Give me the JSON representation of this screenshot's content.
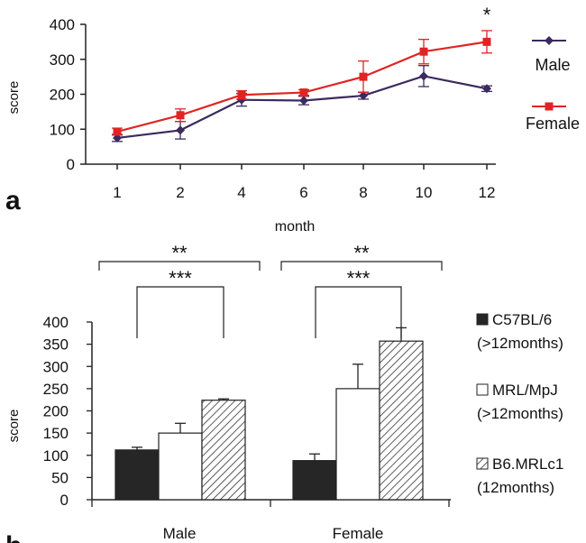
{
  "chart_data": [
    {
      "panel": "a",
      "type": "line",
      "xlabel": "month",
      "ylabel": "score",
      "categories": [
        "1",
        "2",
        "4",
        "6",
        "8",
        "10",
        "12"
      ],
      "ylim": [
        0,
        400
      ],
      "yticks": [
        "0",
        "100",
        "200",
        "300",
        "400"
      ],
      "grid": false,
      "legend_position": "right",
      "series": [
        {
          "name": "Male",
          "color": "#3a2a5e",
          "marker": "diamond",
          "values": [
            75,
            97,
            184,
            182,
            196,
            252,
            216
          ],
          "errors": [
            10,
            25,
            18,
            12,
            10,
            30,
            8
          ]
        },
        {
          "name": "Female",
          "color": "#e02424",
          "marker": "square",
          "values": [
            93,
            140,
            198,
            205,
            250,
            322,
            350
          ],
          "errors": [
            10,
            18,
            12,
            8,
            45,
            35,
            32
          ]
        }
      ],
      "annotations": [
        {
          "category": "12",
          "text": "*"
        }
      ]
    },
    {
      "panel": "b",
      "type": "bar",
      "ylabel": "score",
      "categories": [
        "Male",
        "Female"
      ],
      "ylim": [
        0,
        400
      ],
      "yticks": [
        "0",
        "50",
        "100",
        "150",
        "200",
        "250",
        "300",
        "350",
        "400"
      ],
      "grid": false,
      "legend_position": "right",
      "series": [
        {
          "name": "C57BL/6",
          "name_line2": "(>12months)",
          "fill": "solid",
          "color": "#262626",
          "values": [
            112,
            88
          ],
          "errors": [
            6,
            15
          ]
        },
        {
          "name": "MRL/MpJ",
          "name_line2": "(>12months)",
          "fill": "open",
          "color": "#ffffff",
          "values": [
            150,
            250
          ],
          "errors": [
            22,
            55
          ]
        },
        {
          "name": "B6.MRLc1",
          "name_line2": "(12months)",
          "fill": "hatched",
          "color": "#888888",
          "values": [
            224,
            357
          ],
          "errors": [
            3,
            30
          ]
        }
      ],
      "significance": [
        {
          "group": "Male",
          "text": "**",
          "from_series": 0,
          "to_series": 2,
          "kind": "outer"
        },
        {
          "group": "Male",
          "text": "***",
          "from_series": 0,
          "to_series": 2,
          "kind": "inner"
        },
        {
          "group": "Female",
          "text": "**",
          "from_series": 0,
          "to_series": 2,
          "kind": "outer"
        },
        {
          "group": "Female",
          "text": "***",
          "from_series": 0,
          "to_series": 2,
          "kind": "inner"
        }
      ]
    }
  ],
  "panel_labels": {
    "a": "a",
    "b": "b"
  }
}
